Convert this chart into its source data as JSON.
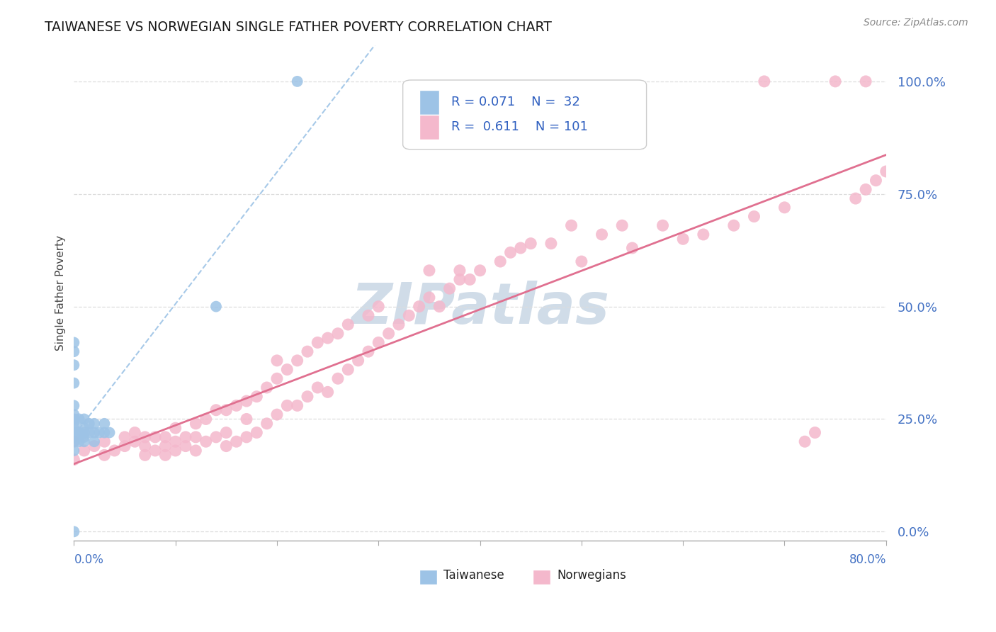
{
  "title": "TAIWANESE VS NORWEGIAN SINGLE FATHER POVERTY CORRELATION CHART",
  "source": "Source: ZipAtlas.com",
  "ylabel": "Single Father Poverty",
  "xlim": [
    0.0,
    0.8
  ],
  "ylim": [
    -0.02,
    1.08
  ],
  "yticks": [
    0.0,
    0.25,
    0.5,
    0.75,
    1.0
  ],
  "ytick_labels": [
    "0.0%",
    "25.0%",
    "50.0%",
    "75.0%",
    "100.0%"
  ],
  "taiwanese_color": "#9dc3e6",
  "norwegian_color": "#f4b8cc",
  "trendline_taiwanese_color": "#9dc3e6",
  "trendline_norwegian_color": "#e07090",
  "watermark_color": "#d0dce8",
  "background_color": "#ffffff",
  "grid_color": "#dddddd",
  "taiwanese_x": [
    0.0,
    0.0,
    0.0,
    0.0,
    0.0,
    0.0,
    0.0,
    0.0,
    0.0,
    0.0,
    0.0,
    0.0,
    0.0,
    0.0,
    0.005,
    0.005,
    0.005,
    0.01,
    0.01,
    0.01,
    0.01,
    0.01,
    0.015,
    0.015,
    0.02,
    0.02,
    0.02,
    0.025,
    0.03,
    0.03,
    0.035,
    0.14,
    0.22
  ],
  "taiwanese_y": [
    0.0,
    0.18,
    0.2,
    0.21,
    0.22,
    0.23,
    0.24,
    0.25,
    0.26,
    0.28,
    0.33,
    0.37,
    0.4,
    0.42,
    0.2,
    0.22,
    0.25,
    0.2,
    0.21,
    0.22,
    0.23,
    0.25,
    0.22,
    0.24,
    0.2,
    0.22,
    0.24,
    0.22,
    0.22,
    0.24,
    0.22,
    0.5,
    1.0
  ],
  "norwegian_x": [
    0.0,
    0.0,
    0.01,
    0.02,
    0.03,
    0.03,
    0.04,
    0.05,
    0.05,
    0.06,
    0.06,
    0.07,
    0.07,
    0.07,
    0.08,
    0.08,
    0.09,
    0.09,
    0.09,
    0.1,
    0.1,
    0.1,
    0.11,
    0.11,
    0.12,
    0.12,
    0.12,
    0.13,
    0.13,
    0.14,
    0.14,
    0.15,
    0.15,
    0.15,
    0.16,
    0.16,
    0.17,
    0.17,
    0.17,
    0.18,
    0.18,
    0.19,
    0.19,
    0.2,
    0.2,
    0.2,
    0.21,
    0.21,
    0.22,
    0.22,
    0.23,
    0.23,
    0.24,
    0.24,
    0.25,
    0.25,
    0.26,
    0.26,
    0.27,
    0.27,
    0.28,
    0.29,
    0.29,
    0.3,
    0.3,
    0.31,
    0.32,
    0.33,
    0.34,
    0.35,
    0.35,
    0.36,
    0.37,
    0.38,
    0.38,
    0.39,
    0.4,
    0.42,
    0.43,
    0.44,
    0.45,
    0.47,
    0.49,
    0.5,
    0.52,
    0.54,
    0.55,
    0.58,
    0.6,
    0.62,
    0.65,
    0.67,
    0.68,
    0.7,
    0.72,
    0.73,
    0.75,
    0.77,
    0.78,
    0.78,
    0.79,
    0.8
  ],
  "norwegian_y": [
    0.16,
    0.2,
    0.18,
    0.19,
    0.17,
    0.2,
    0.18,
    0.19,
    0.21,
    0.2,
    0.22,
    0.17,
    0.19,
    0.21,
    0.18,
    0.21,
    0.17,
    0.19,
    0.21,
    0.18,
    0.2,
    0.23,
    0.19,
    0.21,
    0.18,
    0.21,
    0.24,
    0.2,
    0.25,
    0.21,
    0.27,
    0.19,
    0.22,
    0.27,
    0.2,
    0.28,
    0.21,
    0.25,
    0.29,
    0.22,
    0.3,
    0.24,
    0.32,
    0.26,
    0.34,
    0.38,
    0.28,
    0.36,
    0.28,
    0.38,
    0.3,
    0.4,
    0.32,
    0.42,
    0.31,
    0.43,
    0.34,
    0.44,
    0.36,
    0.46,
    0.38,
    0.4,
    0.48,
    0.42,
    0.5,
    0.44,
    0.46,
    0.48,
    0.5,
    0.52,
    0.58,
    0.5,
    0.54,
    0.56,
    0.58,
    0.56,
    0.58,
    0.6,
    0.62,
    0.63,
    0.64,
    0.64,
    0.68,
    0.6,
    0.66,
    0.68,
    0.63,
    0.68,
    0.65,
    0.66,
    0.68,
    0.7,
    1.0,
    0.72,
    0.2,
    0.22,
    1.0,
    0.74,
    0.76,
    1.0,
    0.78,
    0.8
  ]
}
